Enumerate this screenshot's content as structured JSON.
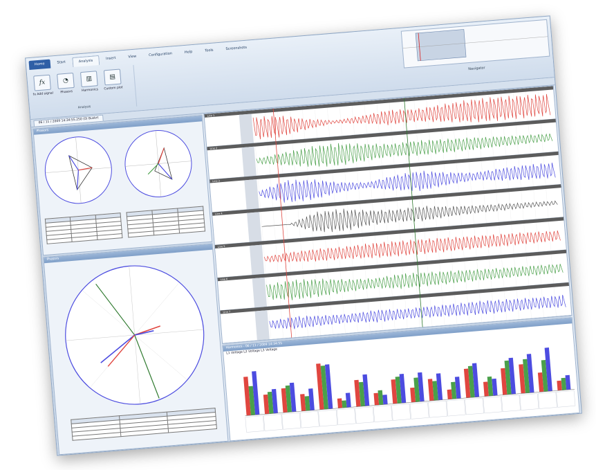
{
  "ribbon": {
    "tabs": [
      "Home",
      "Start",
      "Analysis",
      "Insert",
      "View",
      "Configuration",
      "Help",
      "Tools",
      "Screenshots"
    ],
    "active_tab": 2,
    "buttons": [
      {
        "label": "fx Add signal",
        "icon": "function-icon"
      },
      {
        "label": "Phasors",
        "icon": "phasor-icon"
      },
      {
        "label": "Harmonics",
        "icon": "harmonics-icon"
      },
      {
        "label": "Custom plot",
        "icon": "plot-icon"
      }
    ],
    "group_label": "Analysis",
    "navigator_label": "Navigator"
  },
  "document": {
    "tab_label": "06 / 11 / 2009 14:34:55.250 (0) Buskrt"
  },
  "left": {
    "phasor_title": "Phasors",
    "phasor2_title": "Phasors",
    "table_rows": 5
  },
  "waveforms": {
    "channels": [
      {
        "label": "Line 1",
        "color": "#e0463f",
        "envelope": [
          0.9,
          0.85,
          0.4,
          0.1,
          0.3,
          0.6,
          0.5,
          0.7,
          0.9,
          0.95,
          0.9,
          0.85
        ]
      },
      {
        "label": "Line 2",
        "color": "#4aa04a",
        "envelope": [
          0.2,
          0.5,
          0.8,
          0.9,
          0.7,
          0.5,
          0.6,
          0.55,
          0.5,
          0.4,
          0.35,
          0.3
        ]
      },
      {
        "label": "Line 3",
        "color": "#4c4ce0",
        "envelope": [
          0.2,
          0.9,
          0.8,
          0.4,
          0.2,
          0.6,
          0.8,
          0.5,
          0.3,
          0.5,
          0.6,
          0.6
        ]
      },
      {
        "label": "Line 4",
        "color": "#555555",
        "envelope": [
          0.0,
          0.0,
          0.8,
          0.9,
          0.6,
          0.5,
          0.6,
          0.4,
          0.3,
          0.25,
          0.2,
          0.15
        ]
      },
      {
        "label": "Line 5",
        "color": "#e0463f",
        "envelope": [
          0.2,
          0.4,
          0.5,
          0.5,
          0.6,
          0.6,
          0.6,
          0.55,
          0.5,
          0.5,
          0.45,
          0.4
        ]
      },
      {
        "label": "Line 6",
        "color": "#4aa04a",
        "envelope": [
          0.6,
          0.8,
          0.7,
          0.5,
          0.4,
          0.6,
          0.55,
          0.5,
          0.45,
          0.4,
          0.4,
          0.35
        ]
      },
      {
        "label": "Line 7",
        "color": "#4c4ce0",
        "envelope": [
          0.3,
          0.5,
          0.4,
          0.35,
          0.5,
          0.4,
          0.45,
          0.5,
          0.55,
          0.5,
          0.45,
          0.5
        ]
      }
    ]
  },
  "harmonics": {
    "title": "Harmonics - 06 / 11 / 2009 14:34:55",
    "subtitle": "L1 Voltage L2 Voltage L3 Voltage",
    "groups": [
      [
        0.8,
        0.6,
        0.9
      ],
      [
        0.4,
        0.45,
        0.5
      ],
      [
        0.5,
        0.55,
        0.6
      ],
      [
        0.35,
        0.3,
        0.45
      ],
      [
        0.95,
        0.9,
        0.92
      ],
      [
        0.2,
        0.15,
        0.3
      ],
      [
        0.55,
        0.5,
        0.65
      ],
      [
        0.25,
        0.3,
        0.2
      ],
      [
        0.5,
        0.55,
        0.6
      ],
      [
        0.3,
        0.5,
        0.6
      ],
      [
        0.45,
        0.4,
        0.55
      ],
      [
        0.2,
        0.35,
        0.45
      ],
      [
        0.6,
        0.65,
        0.7
      ],
      [
        0.3,
        0.4,
        0.35
      ],
      [
        0.55,
        0.7,
        0.75
      ],
      [
        0.6,
        0.7,
        0.8
      ],
      [
        0.4,
        0.65,
        0.9
      ],
      [
        0.2,
        0.25,
        0.3
      ]
    ],
    "colors": [
      "#e0463f",
      "#4aa04a",
      "#4c4ce0"
    ]
  }
}
